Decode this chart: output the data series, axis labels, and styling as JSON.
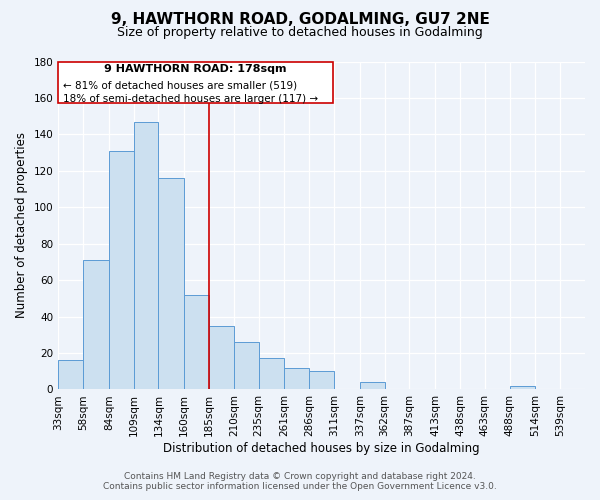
{
  "title": "9, HAWTHORN ROAD, GODALMING, GU7 2NE",
  "subtitle": "Size of property relative to detached houses in Godalming",
  "xlabel": "Distribution of detached houses by size in Godalming",
  "ylabel": "Number of detached properties",
  "bar_labels": [
    "33sqm",
    "58sqm",
    "84sqm",
    "109sqm",
    "134sqm",
    "160sqm",
    "185sqm",
    "210sqm",
    "235sqm",
    "261sqm",
    "286sqm",
    "311sqm",
    "337sqm",
    "362sqm",
    "387sqm",
    "413sqm",
    "438sqm",
    "463sqm",
    "488sqm",
    "514sqm",
    "539sqm"
  ],
  "bar_values": [
    16,
    71,
    131,
    147,
    116,
    52,
    35,
    26,
    17,
    12,
    10,
    0,
    4,
    0,
    0,
    0,
    0,
    0,
    2,
    0,
    0
  ],
  "bin_edges": [
    33,
    58,
    84,
    109,
    134,
    160,
    185,
    210,
    235,
    261,
    286,
    311,
    337,
    362,
    387,
    413,
    438,
    463,
    488,
    514,
    539,
    564
  ],
  "bar_color": "#cce0f0",
  "bar_edge_color": "#5b9bd5",
  "vline_x": 185,
  "vline_color": "#cc0000",
  "annotation_title": "9 HAWTHORN ROAD: 178sqm",
  "annotation_line1": "← 81% of detached houses are smaller (519)",
  "annotation_line2": "18% of semi-detached houses are larger (117) →",
  "ylim": [
    0,
    180
  ],
  "yticks": [
    0,
    20,
    40,
    60,
    80,
    100,
    120,
    140,
    160,
    180
  ],
  "footer1": "Contains HM Land Registry data © Crown copyright and database right 2024.",
  "footer2": "Contains public sector information licensed under the Open Government Licence v3.0.",
  "bg_color": "#eef3fa",
  "plot_bg_color": "#eef3fa",
  "title_fontsize": 11,
  "subtitle_fontsize": 9,
  "axis_label_fontsize": 8.5,
  "tick_fontsize": 7.5,
  "footer_fontsize": 6.5
}
